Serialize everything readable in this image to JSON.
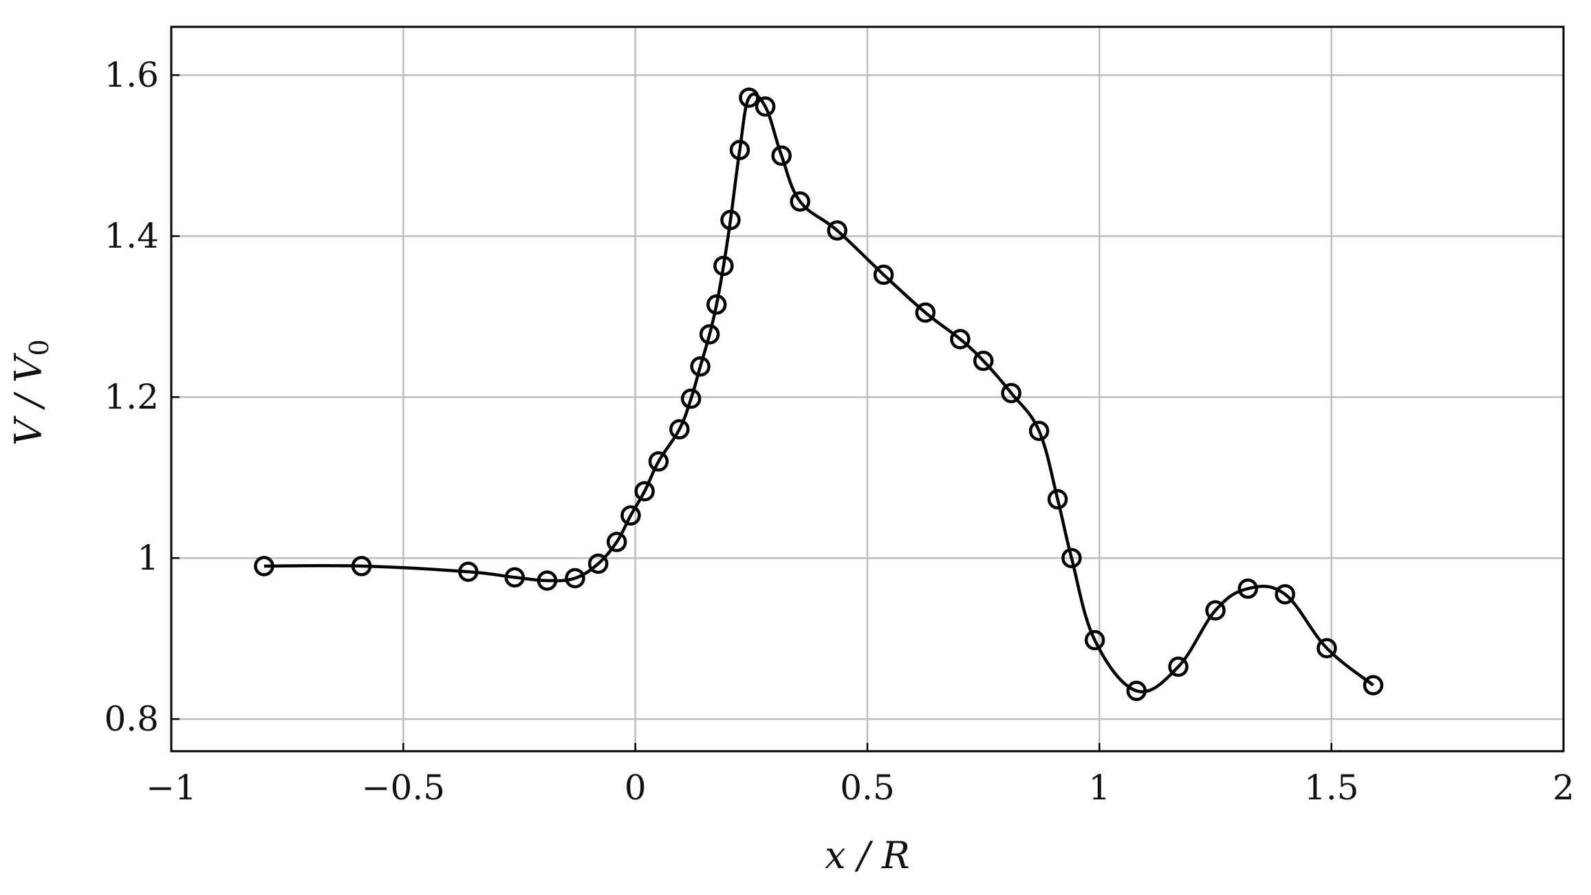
{
  "chart_data": {
    "type": "line",
    "title": "",
    "xlabel": "x / R",
    "ylabel": "V / V0",
    "ylabel_parts": {
      "main": "V / V",
      "sub": "0"
    },
    "xlim": [
      -1,
      2
    ],
    "ylim": [
      0.76,
      1.66
    ],
    "xticks": [
      -1,
      -0.5,
      0,
      0.5,
      1,
      1.5,
      2
    ],
    "xtick_labels": [
      "−1",
      "−0.5",
      "0",
      "0.5",
      "1",
      "1.5",
      "2"
    ],
    "yticks": [
      0.8,
      1,
      1.2,
      1.4,
      1.6
    ],
    "ytick_labels": [
      "0.8",
      "1",
      "1.2",
      "1.4",
      "1.6"
    ],
    "grid": true,
    "legend": "none",
    "series": [
      {
        "marker": "circle",
        "color": "#000000",
        "x": [
          -0.8,
          -0.59,
          -0.36,
          -0.26,
          -0.19,
          -0.13,
          -0.08,
          -0.04,
          -0.01,
          0.02,
          0.05,
          0.095,
          0.12,
          0.14,
          0.16,
          0.175,
          0.19,
          0.205,
          0.225,
          0.245,
          0.28,
          0.315,
          0.355,
          0.435,
          0.535,
          0.625,
          0.7,
          0.75,
          0.81,
          0.87,
          0.91,
          0.94,
          0.99,
          1.08,
          1.17,
          1.25,
          1.32,
          1.4,
          1.49,
          1.59
        ],
        "y": [
          0.99,
          0.99,
          0.983,
          0.976,
          0.972,
          0.975,
          0.993,
          1.02,
          1.053,
          1.083,
          1.12,
          1.16,
          1.198,
          1.238,
          1.278,
          1.315,
          1.363,
          1.42,
          1.507,
          1.572,
          1.561,
          1.5,
          1.443,
          1.407,
          1.352,
          1.305,
          1.272,
          1.245,
          1.205,
          1.158,
          1.073,
          1.0,
          0.898,
          0.835,
          0.865,
          0.935,
          0.962,
          0.955,
          0.888,
          0.842
        ]
      }
    ]
  }
}
